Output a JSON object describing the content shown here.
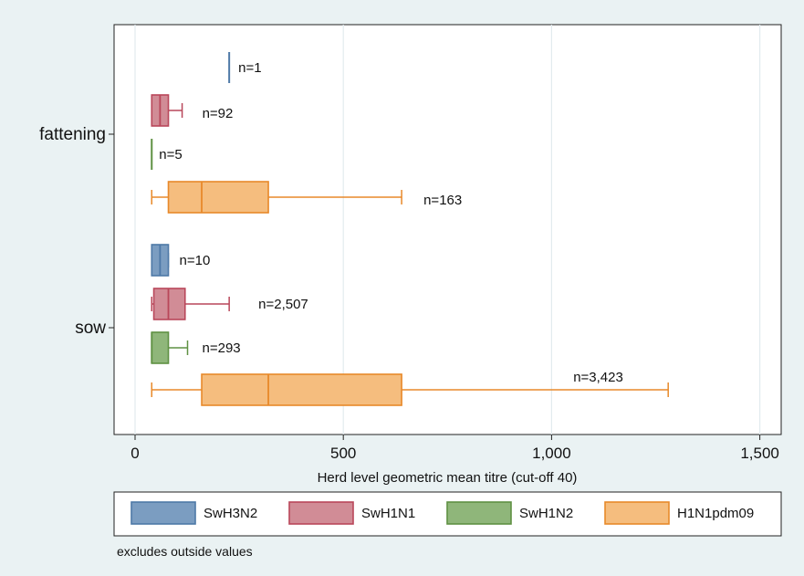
{
  "chart_data": {
    "type": "box",
    "orientation": "horizontal",
    "xlabel": "Herd level geometric mean titre (cut-off 40)",
    "xlim": [
      -50,
      1550
    ],
    "xticks": [
      0,
      500,
      1000,
      1500
    ],
    "xtick_labels": [
      "0",
      "500",
      "1,000",
      "1,500"
    ],
    "grid": true,
    "categories": [
      "fattening",
      "sow"
    ],
    "legend_position": "bottom",
    "note": "excludes outside values",
    "series": [
      {
        "name": "SwH3N2",
        "color": "#4e79a7",
        "fill": "#7b9dc1"
      },
      {
        "name": "SwH1N1",
        "color": "#b9475a",
        "fill": "#d18c96"
      },
      {
        "name": "SwH1N2",
        "color": "#5f9143",
        "fill": "#8fb67a"
      },
      {
        "name": "H1N1pdm09",
        "color": "#e8892a",
        "fill": "#f5bd7e"
      }
    ],
    "boxes": [
      {
        "category": "fattening",
        "series": "SwH3N2",
        "min": 226,
        "q1": 226,
        "median": 226,
        "q3": 226,
        "max": 226,
        "label": "n=1"
      },
      {
        "category": "fattening",
        "series": "SwH1N1",
        "min": 40,
        "q1": 40,
        "median": 60,
        "q3": 80,
        "max": 113,
        "label": "n=92"
      },
      {
        "category": "fattening",
        "series": "SwH1N2",
        "min": 40,
        "q1": 40,
        "median": 40,
        "q3": 40,
        "max": 40,
        "label": "n=5"
      },
      {
        "category": "fattening",
        "series": "H1N1pdm09",
        "min": 40,
        "q1": 80,
        "median": 160,
        "q3": 320,
        "max": 640,
        "label": "n=163"
      },
      {
        "category": "sow",
        "series": "SwH3N2",
        "min": 40,
        "q1": 40,
        "median": 60,
        "q3": 80,
        "max": 80,
        "label": "n=10"
      },
      {
        "category": "sow",
        "series": "SwH1N1",
        "min": 40,
        "q1": 45,
        "median": 80,
        "q3": 120,
        "max": 226,
        "label": "n=2,507"
      },
      {
        "category": "sow",
        "series": "SwH1N2",
        "min": 40,
        "q1": 40,
        "median": 40,
        "q3": 80,
        "max": 126,
        "label": "n=293"
      },
      {
        "category": "sow",
        "series": "H1N1pdm09",
        "min": 40,
        "q1": 160,
        "median": 320,
        "q3": 640,
        "max": 1280,
        "label": "n=3,423"
      }
    ]
  }
}
